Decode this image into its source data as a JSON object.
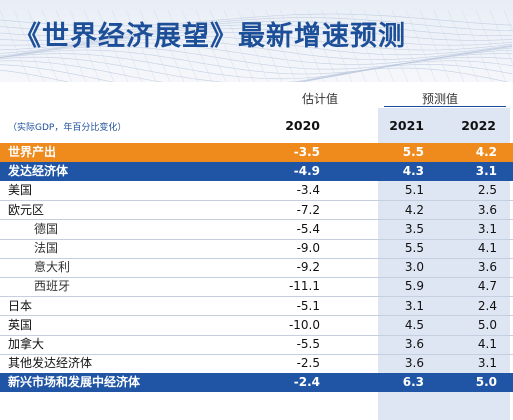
{
  "title": "《世界经济展望》最新增速预测",
  "header": {
    "estimate_label": "估计值",
    "forecast_label": "预测值",
    "unit_note": "（实际GDP，年百分比变化）",
    "years": [
      "2020",
      "2021",
      "2022"
    ]
  },
  "rows": [
    {
      "label": "世界产出",
      "style": "world",
      "values": [
        "-3.5",
        "5.5",
        "4.2"
      ]
    },
    {
      "label": "发达经济体",
      "style": "adv",
      "values": [
        "-4.9",
        "4.3",
        "3.1"
      ]
    },
    {
      "label": "美国",
      "style": "normal",
      "values": [
        "-3.4",
        "5.1",
        "2.5"
      ]
    },
    {
      "label": "欧元区",
      "style": "normal",
      "values": [
        "-7.2",
        "4.2",
        "3.6"
      ]
    },
    {
      "label": "德国",
      "style": "sub",
      "values": [
        "-5.4",
        "3.5",
        "3.1"
      ]
    },
    {
      "label": "法国",
      "style": "sub",
      "values": [
        "-9.0",
        "5.5",
        "4.1"
      ]
    },
    {
      "label": "意大利",
      "style": "sub",
      "values": [
        "-9.2",
        "3.0",
        "3.6"
      ]
    },
    {
      "label": "西班牙",
      "style": "sub",
      "values": [
        "-11.1",
        "5.9",
        "4.7"
      ]
    },
    {
      "label": "日本",
      "style": "normal",
      "values": [
        "-5.1",
        "3.1",
        "2.4"
      ]
    },
    {
      "label": "英国",
      "style": "normal",
      "values": [
        "-10.0",
        "4.5",
        "5.0"
      ]
    },
    {
      "label": "加拿大",
      "style": "normal",
      "values": [
        "-5.5",
        "3.6",
        "4.1"
      ]
    },
    {
      "label": "其他发达经济体",
      "style": "normal",
      "values": [
        "-2.5",
        "3.6",
        "3.1"
      ]
    },
    {
      "label": "新兴市场和发展中经济体",
      "style": "em",
      "values": [
        "-2.4",
        "6.3",
        "5.0"
      ]
    }
  ],
  "colors": {
    "title": "#1d4f99",
    "world_row": "#ef8a1d",
    "group_row": "#1f55a4",
    "forecast_shade": "#dde6f2"
  }
}
